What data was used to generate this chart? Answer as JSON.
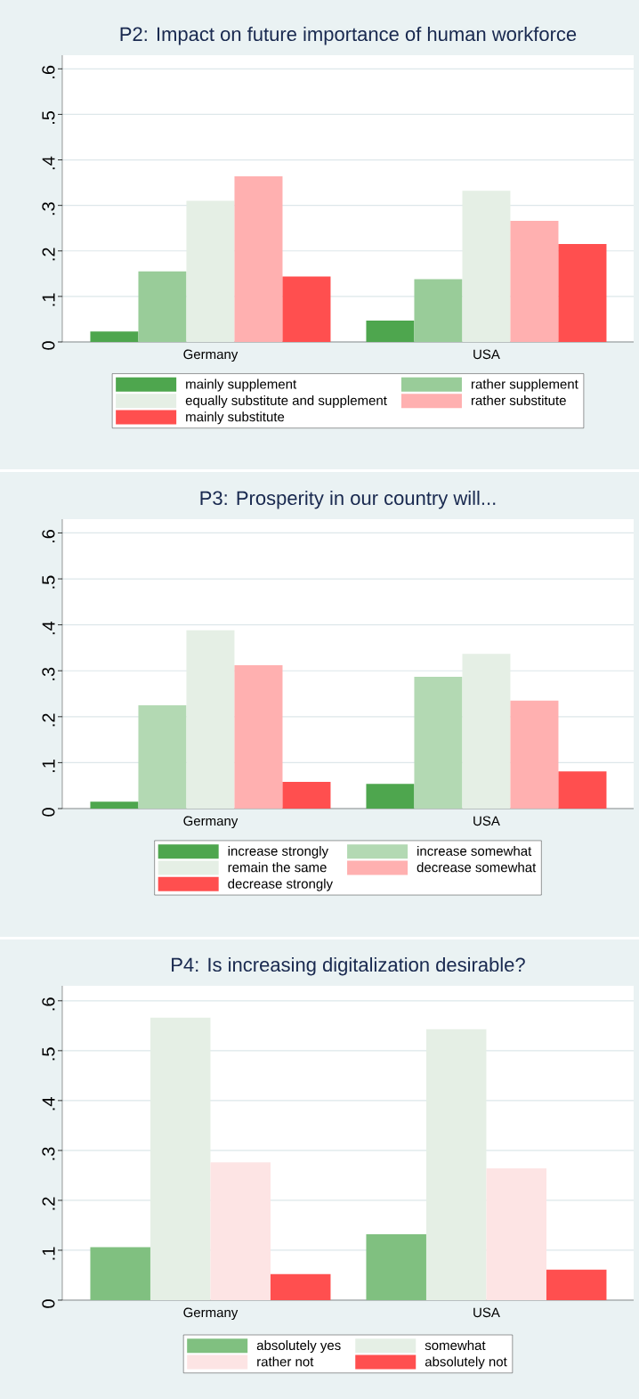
{
  "chart_data": [
    {
      "type": "bar",
      "title": "P2: Impact on future importance of human workforce",
      "categories": [
        "Germany",
        "USA"
      ],
      "ylim": [
        0,
        0.63
      ],
      "yticks": [
        0,
        {
          "value": 0.1,
          "label": ".1"
        },
        {
          "value": 0.2,
          "label": ".2"
        },
        {
          "value": 0.3,
          "label": ".3"
        },
        {
          "value": 0.4,
          "label": ".4"
        },
        {
          "value": 0.5,
          "label": ".5"
        },
        {
          "value": 0.6,
          "label": ".6"
        }
      ],
      "grid": "y",
      "legend": "bottom",
      "series": [
        {
          "name": "mainly supplement",
          "color": "#4ea64e",
          "values": [
            0.023,
            0.047
          ]
        },
        {
          "name": "rather supplement",
          "color": "#99cc99",
          "values": [
            0.155,
            0.138
          ]
        },
        {
          "name": "equally substitute and supplement",
          "color": "#e5efe5",
          "values": [
            0.31,
            0.332
          ]
        },
        {
          "name": "rather substitute",
          "color": "#ffb0b0",
          "values": [
            0.364,
            0.266
          ]
        },
        {
          "name": "mainly substitute",
          "color": "#ff4f4f",
          "values": [
            0.144,
            0.215
          ]
        }
      ]
    },
    {
      "type": "bar",
      "title": "P3: Prosperity in our country will...",
      "categories": [
        "Germany",
        "USA"
      ],
      "ylim": [
        0,
        0.63
      ],
      "yticks": [
        0,
        {
          "value": 0.1,
          "label": ".1"
        },
        {
          "value": 0.2,
          "label": ".2"
        },
        {
          "value": 0.3,
          "label": ".3"
        },
        {
          "value": 0.4,
          "label": ".4"
        },
        {
          "value": 0.5,
          "label": ".5"
        },
        {
          "value": 0.6,
          "label": ".6"
        }
      ],
      "grid": "y",
      "legend": "bottom",
      "series": [
        {
          "name": "increase strongly",
          "color": "#4ea64e",
          "values": [
            0.015,
            0.054
          ]
        },
        {
          "name": "increase somewhat",
          "color": "#b3d9b3",
          "values": [
            0.225,
            0.287
          ]
        },
        {
          "name": "remain the same",
          "color": "#e5efe5",
          "values": [
            0.388,
            0.337
          ]
        },
        {
          "name": "decrease somewhat",
          "color": "#ffb0b0",
          "values": [
            0.312,
            0.235
          ]
        },
        {
          "name": "decrease strongly",
          "color": "#ff4f4f",
          "values": [
            0.058,
            0.081
          ]
        }
      ]
    },
    {
      "type": "bar",
      "title": "P4: Is increasing digitalization desirable?",
      "categories": [
        "Germany",
        "USA"
      ],
      "ylim": [
        0,
        0.63
      ],
      "yticks": [
        0,
        {
          "value": 0.1,
          "label": ".1"
        },
        {
          "value": 0.2,
          "label": ".2"
        },
        {
          "value": 0.3,
          "label": ".3"
        },
        {
          "value": 0.4,
          "label": ".4"
        },
        {
          "value": 0.5,
          "label": ".5"
        },
        {
          "value": 0.6,
          "label": ".6"
        }
      ],
      "grid": "y",
      "legend": "bottom",
      "series": [
        {
          "name": "absolutely yes",
          "color": "#80c080",
          "values": [
            0.106,
            0.132
          ]
        },
        {
          "name": "somewhat",
          "color": "#e5efe5",
          "values": [
            0.566,
            0.543
          ]
        },
        {
          "name": "rather not",
          "color": "#fde4e4",
          "values": [
            0.276,
            0.264
          ]
        },
        {
          "name": "absolutely not",
          "color": "#ff4f4f",
          "values": [
            0.052,
            0.061
          ]
        }
      ]
    }
  ]
}
